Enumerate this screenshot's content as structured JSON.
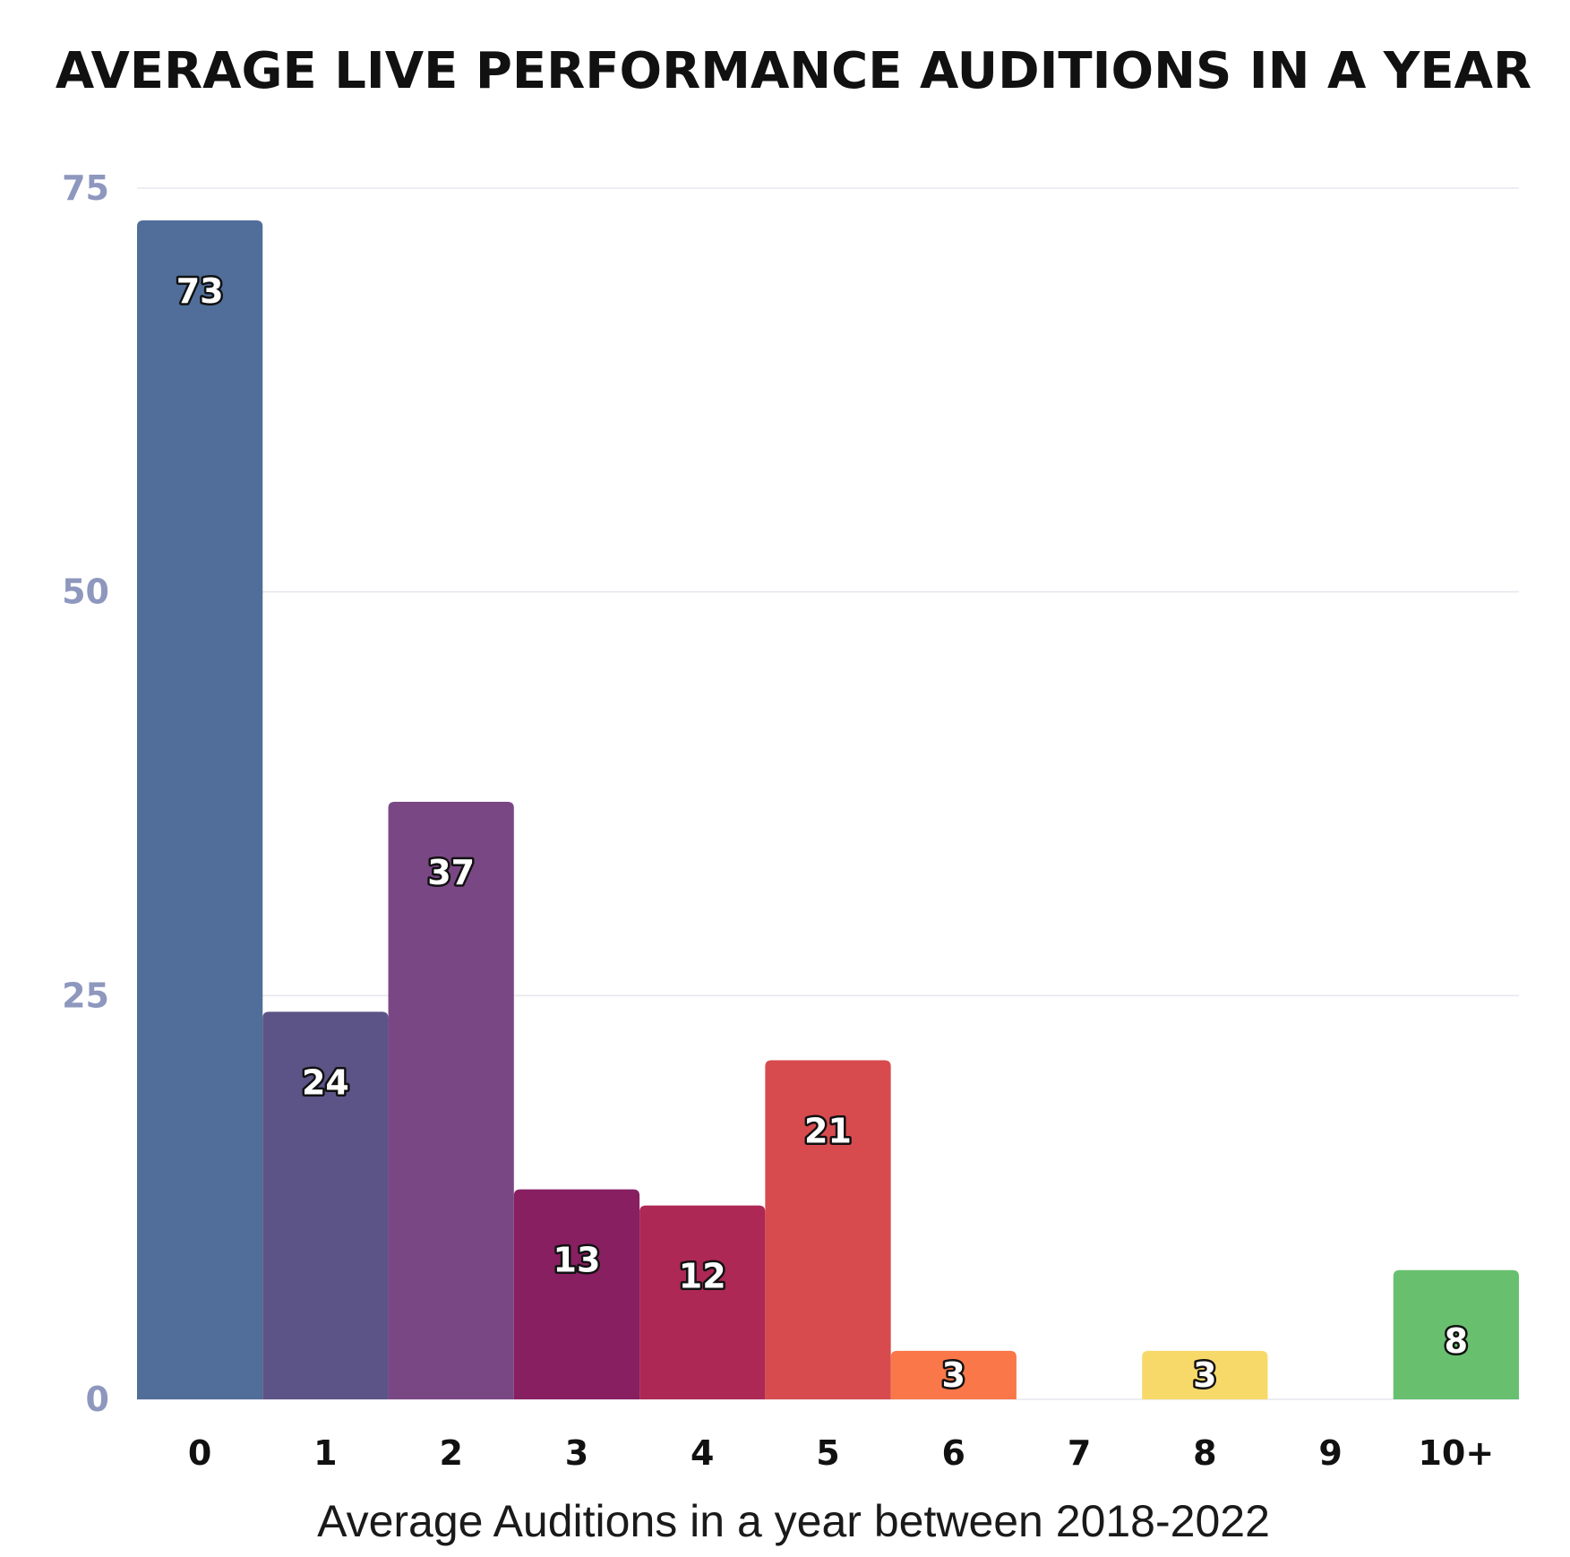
{
  "chart_data": {
    "type": "bar",
    "title": "AVERAGE LIVE PERFORMANCE AUDITIONS IN A YEAR",
    "xlabel": "Average Auditions in a year between 2018-2022",
    "ylabel": "",
    "categories": [
      "0",
      "1",
      "2",
      "3",
      "4",
      "5",
      "6",
      "7",
      "8",
      "9",
      "10+"
    ],
    "values": [
      73,
      24,
      37,
      13,
      12,
      21,
      3,
      0,
      3,
      0,
      8
    ],
    "data_labels": [
      "73",
      "24",
      "37",
      "13",
      "12",
      "21",
      "3",
      "",
      "3",
      "",
      "8"
    ],
    "colors": [
      "#506e99",
      "#5c5487",
      "#7a4785",
      "#871f61",
      "#ad2854",
      "#d74b4e",
      "#f97748",
      "#f97748",
      "#f7d96a",
      "#f7d96a",
      "#68c06f"
    ],
    "ylim": [
      0,
      75
    ],
    "yticks": [
      0,
      25,
      50,
      75
    ],
    "ytick_labels": [
      "0",
      "25",
      "50",
      "75"
    ],
    "grid": true,
    "legend": "none"
  }
}
